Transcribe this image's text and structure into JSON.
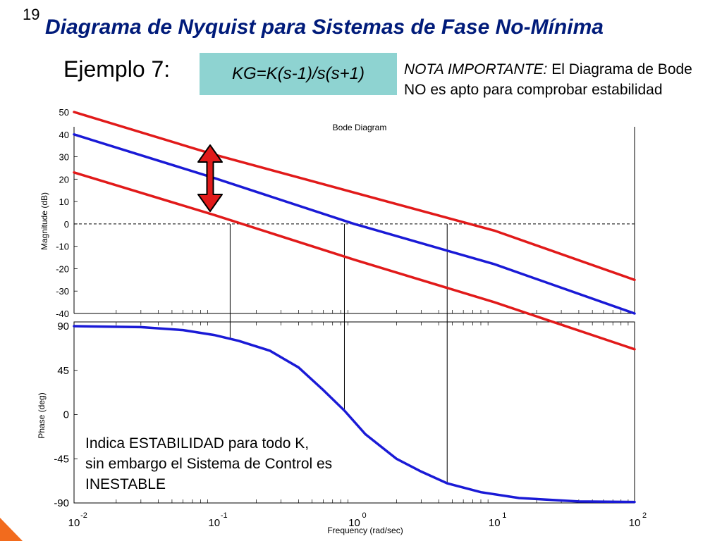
{
  "slide": {
    "number": "19",
    "title": "Diagrama de Nyquist para Sistemas de Fase No-Mínima",
    "example_label": "Ejemplo 7:",
    "transfer_function": "KG=K(s-1)/s(s+1)",
    "note_emphasis": "NOTA IMPORTANTE:",
    "note_text": " El Diagrama de Bode NO es apto para comprobar estabilidad",
    "annotation_line1": "Indica ESTABILIDAD para todo K,",
    "annotation_line2": "sin embargo el Sistema de Control es",
    "annotation_line3": "INESTABLE"
  },
  "colors": {
    "title": "#001b7a",
    "nominal_curve": "#1a1ad6",
    "shifted_curves": "#e11a1a",
    "box_fill": "#8ed3d1",
    "arrow": "#e11a1a"
  },
  "chart_data": {
    "type": "line",
    "title": "Bode Diagram",
    "xlabel": "Frequency  (rad/sec)",
    "x_scale": "log",
    "x_ticks": [
      {
        "base": "10",
        "exp": "-2"
      },
      {
        "base": "10",
        "exp": "-1"
      },
      {
        "base": "10",
        "exp": "0"
      },
      {
        "base": "10",
        "exp": "1"
      },
      {
        "base": "10",
        "exp": "2"
      }
    ],
    "magnitude": {
      "ylabel": "Magnitude (dB)",
      "ylim": [
        -40,
        50
      ],
      "yticks": [
        "50",
        "40",
        "30",
        "20",
        "10",
        "0",
        "-10",
        "-20",
        "-30",
        "-40"
      ],
      "series": [
        {
          "role": "upper",
          "color": "#e11a1a",
          "points": [
            [
              0.01,
              50
            ],
            [
              0.1,
              31
            ],
            [
              1,
              14
            ],
            [
              10,
              -3
            ],
            [
              100,
              -25
            ]
          ]
        },
        {
          "role": "nominal",
          "color": "#1a1ad6",
          "points": [
            [
              0.01,
              40
            ],
            [
              0.1,
              20.5
            ],
            [
              1,
              0
            ],
            [
              10,
              -18
            ],
            [
              100,
              -40
            ]
          ]
        },
        {
          "role": "lower",
          "color": "#e11a1a",
          "points": [
            [
              0.01,
              23
            ],
            [
              0.1,
              4
            ],
            [
              1,
              -16
            ],
            [
              10,
              -35
            ],
            [
              100,
              -56
            ]
          ]
        }
      ],
      "zero_db_crossings": [
        0.13,
        0.85,
        4.6
      ]
    },
    "phase": {
      "ylabel": "Phase (deg)",
      "ylim": [
        -90,
        90
      ],
      "yticks": [
        "90",
        "45",
        "0",
        "-45",
        "-90"
      ],
      "series": [
        {
          "color": "#1a1ad6",
          "points": [
            [
              0.01,
              90
            ],
            [
              0.03,
              89
            ],
            [
              0.06,
              86
            ],
            [
              0.1,
              81
            ],
            [
              0.15,
              75
            ],
            [
              0.25,
              65
            ],
            [
              0.4,
              48
            ],
            [
              0.6,
              25
            ],
            [
              0.85,
              4
            ],
            [
              1.2,
              -20
            ],
            [
              2,
              -45
            ],
            [
              3,
              -58
            ],
            [
              4.6,
              -70
            ],
            [
              8,
              -79
            ],
            [
              15,
              -85
            ],
            [
              40,
              -88.5
            ],
            [
              100,
              -89
            ]
          ]
        }
      ]
    }
  }
}
